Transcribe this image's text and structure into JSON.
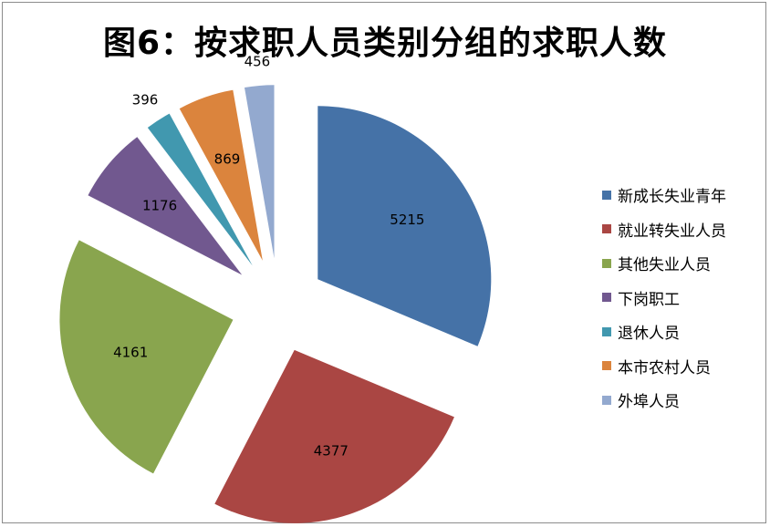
{
  "chart_data": {
    "type": "pie",
    "title": "图6：按求职人员类别分组的求职人数",
    "categories": [
      "新成长失业青年",
      "就业转失业人员",
      "其他失业人员",
      "下岗职工",
      "退休人员",
      "本市农村人员",
      "外埠人员"
    ],
    "values": [
      5215,
      4377,
      4161,
      1176,
      396,
      869,
      456
    ],
    "colors": [
      "#4572a7",
      "#aa4643",
      "#89a54e",
      "#71588f",
      "#4198af",
      "#db843d",
      "#93a9cf"
    ],
    "exploded": true,
    "legend_position": "right"
  }
}
